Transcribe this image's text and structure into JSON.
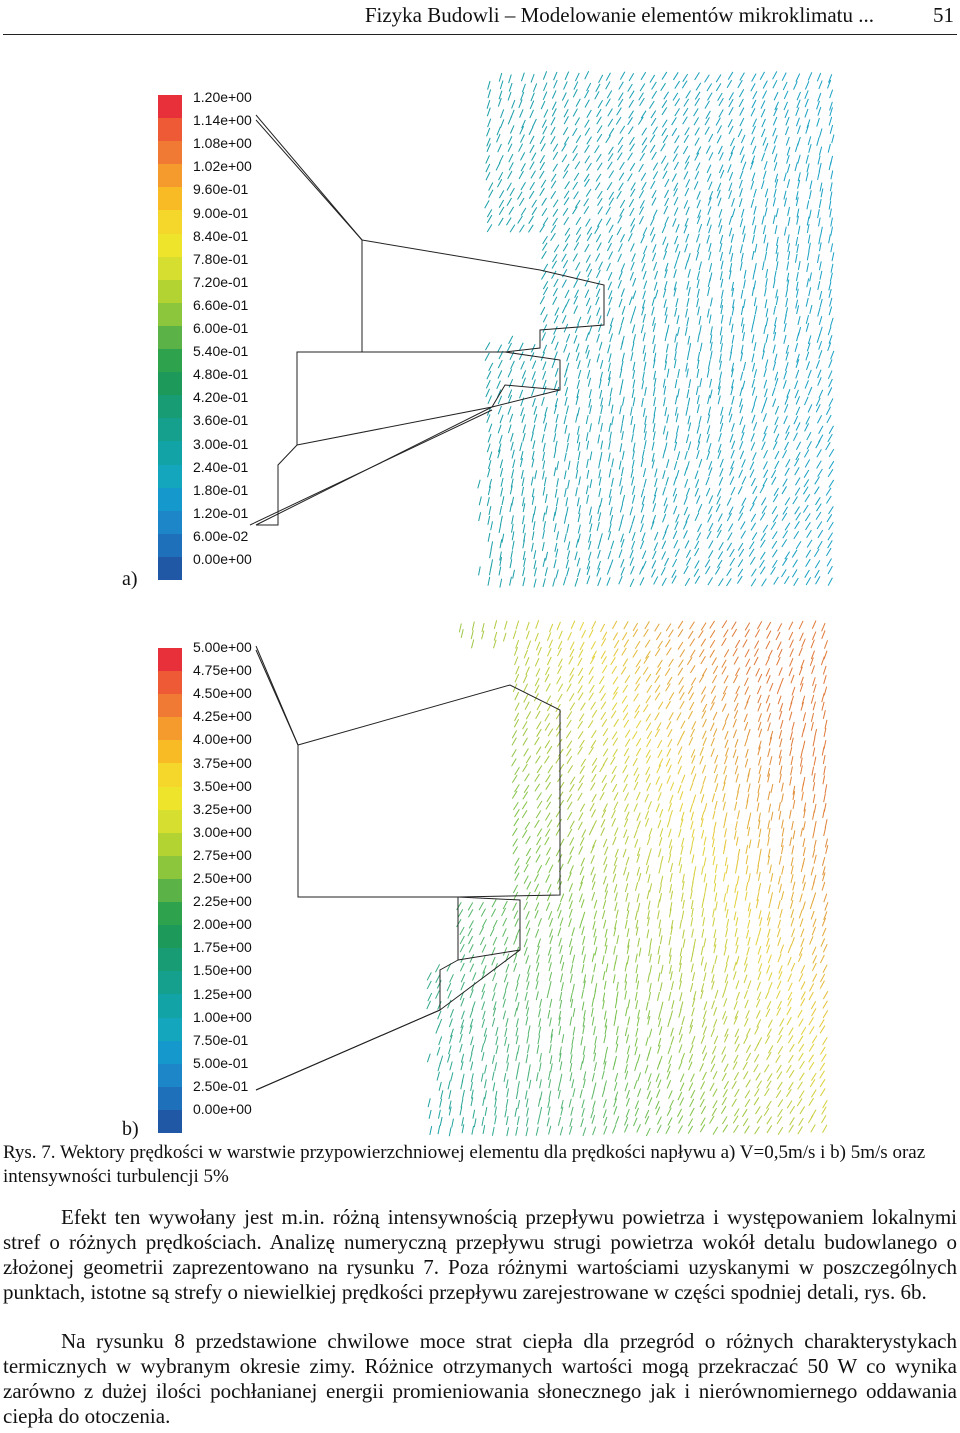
{
  "header": {
    "title": "Fizyka Budowli – Modelowanie elementów mikroklimatu ...",
    "page_number": "51"
  },
  "figure_a": {
    "label": "a)",
    "legend_ticks": [
      "1.20e+00",
      "1.14e+00",
      "1.08e+00",
      "1.02e+00",
      "9.60e-01",
      "9.00e-01",
      "8.40e-01",
      "7.80e-01",
      "7.20e-01",
      "6.60e-01",
      "6.00e-01",
      "5.40e-01",
      "4.80e-01",
      "4.20e-01",
      "3.60e-01",
      "3.00e-01",
      "2.40e-01",
      "1.80e-01",
      "1.20e-01",
      "6.00e-02",
      "0.00e+00"
    ],
    "legend_colors": [
      "#e8303a",
      "#ee5a36",
      "#f07a34",
      "#f59a2c",
      "#f8bb25",
      "#f5d62a",
      "#eee42b",
      "#d6de2f",
      "#b3d333",
      "#8cc63c",
      "#5bb347",
      "#2fa24e",
      "#1d9a5a",
      "#179c74",
      "#159f8d",
      "#11a3a5",
      "#14a6bd",
      "#1599cc",
      "#1c86c8",
      "#1f70ba",
      "#2058a6"
    ]
  },
  "figure_b": {
    "label": "b)",
    "legend_ticks": [
      "5.00e+00",
      "4.75e+00",
      "4.50e+00",
      "4.25e+00",
      "4.00e+00",
      "3.75e+00",
      "3.50e+00",
      "3.25e+00",
      "3.00e+00",
      "2.75e+00",
      "2.50e+00",
      "2.25e+00",
      "2.00e+00",
      "1.75e+00",
      "1.50e+00",
      "1.25e+00",
      "1.00e+00",
      "7.50e-01",
      "5.00e-01",
      "2.50e-01",
      "0.00e+00"
    ],
    "legend_colors": [
      "#e8303a",
      "#ee5a36",
      "#f07a34",
      "#f59a2c",
      "#f8bb25",
      "#f5d62a",
      "#eee42b",
      "#d6de2f",
      "#b3d333",
      "#8cc63c",
      "#5bb347",
      "#2fa24e",
      "#1d9a5a",
      "#179c74",
      "#159f8d",
      "#11a3a5",
      "#14a6bd",
      "#1599cc",
      "#1c86c8",
      "#1f70ba",
      "#2058a6"
    ]
  },
  "caption": "Rys. 7. Wektory prędkości w warstwie przypowierzchniowej elementu dla prędkości napływu a) V=0,5m/s i b) 5m/s oraz intensywności turbulencji 5%",
  "paragraphs": [
    "Efekt ten wywołany jest m.in. różną intensywnością przepływu powietrza i występowaniem lokalnymi stref o różnych prędkościach. Analizę numeryczną przepływu strugi powietrza wokół detalu budowlanego o złożonej geometrii zaprezentowano na rysunku 7. Poza różnymi wartościami uzyskanymi w poszczególnych punktach, istotne są strefy o niewielkiej prędkości przepływu zarejestrowane w części spodniej detali, rys. 6b.",
    "Na rysunku 8 przedstawione chwilowe moce strat ciepła dla przegród o różnych charakterystykach termicznych w wybranym okresie zimy. Różnice otrzymanych wartości mogą przekraczać 50 W co wynika zarówno z dużej ilości pochłanianej energii promieniowania słonecznego jak i nierównomiernego oddawania ciepła do otoczenia."
  ]
}
